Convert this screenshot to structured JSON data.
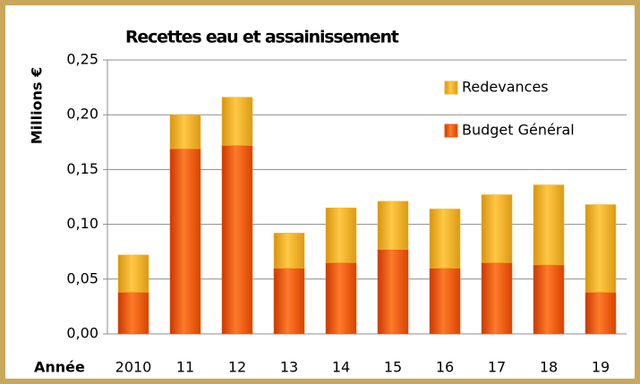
{
  "chart_data": {
    "type": "stacked_bar",
    "title": "Recettes eau et assainissement",
    "ylabel": "Millions €",
    "xlabel": "Année",
    "categories": [
      "2010",
      "11",
      "12",
      "13",
      "14",
      "15",
      "16",
      "17",
      "18",
      "19"
    ],
    "series": [
      {
        "name": "Budget Général",
        "color": "#f0560c",
        "values": [
          0.038,
          0.169,
          0.172,
          0.06,
          0.065,
          0.077,
          0.06,
          0.065,
          0.063,
          0.038
        ]
      },
      {
        "name": "Redevances",
        "color": "#f2b122",
        "values": [
          0.034,
          0.031,
          0.044,
          0.032,
          0.05,
          0.044,
          0.054,
          0.062,
          0.073,
          0.08
        ]
      }
    ],
    "ylim": [
      0,
      0.25
    ],
    "yticks": [
      {
        "value": 0,
        "label": "0,00"
      },
      {
        "value": 0.05,
        "label": "0,05"
      },
      {
        "value": 0.1,
        "label": "0,10"
      },
      {
        "value": 0.15,
        "label": "0,15"
      },
      {
        "value": 0.2,
        "label": "0,20"
      },
      {
        "value": 0.25,
        "label": "0,25"
      }
    ],
    "grid": true,
    "legend": "upper right"
  }
}
